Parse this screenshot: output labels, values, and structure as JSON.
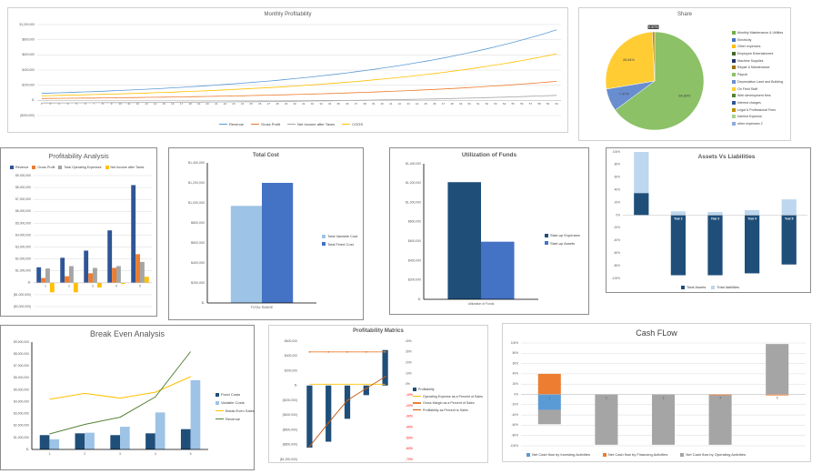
{
  "chart_data": [
    {
      "id": "monthly",
      "type": "line",
      "title": "Monthly Profitability",
      "grid": true,
      "legend": "bottom",
      "ylim": [
        -200000,
        1000000
      ],
      "yticks": [
        "($200,000)",
        "$-",
        "$200,000",
        "$400,000",
        "$600,000",
        "$800,000",
        "$1,000,000"
      ],
      "categories": [
        1,
        2,
        3,
        4,
        5,
        6,
        7,
        8,
        9,
        10,
        11,
        12,
        13,
        14,
        15,
        16,
        17,
        18,
        19,
        20,
        21,
        22,
        23,
        24,
        25,
        26,
        27,
        28,
        29,
        30,
        31,
        32,
        33,
        34,
        35,
        36,
        37,
        38,
        39,
        40,
        41,
        42,
        43,
        44,
        45,
        46,
        47,
        48,
        49,
        50,
        51,
        52,
        53,
        54,
        55,
        56,
        57,
        58,
        59,
        60
      ],
      "series": [
        {
          "name": "Revenue",
          "type": "line",
          "color": "#5b9bd5",
          "values": [
            92000,
            96000,
            100000,
            104000,
            108000,
            112000,
            116000,
            121000,
            126000,
            131000,
            136000,
            142000,
            147000,
            153000,
            159000,
            166000,
            172000,
            179000,
            186000,
            194000,
            202000,
            210000,
            218000,
            227000,
            236000,
            245000,
            255000,
            265000,
            276000,
            287000,
            298000,
            310000,
            323000,
            336000,
            349000,
            363000,
            378000,
            393000,
            408000,
            425000,
            442000,
            459000,
            478000,
            497000,
            517000,
            537000,
            559000,
            581000,
            605000,
            629000,
            654000,
            680000,
            707000,
            736000,
            765000,
            796000,
            827000,
            860000,
            895000,
            931000
          ]
        },
        {
          "name": "Gross Profit",
          "type": "line",
          "color": "#ed7d31",
          "values": [
            25000,
            26000,
            27000,
            28000,
            29000,
            30000,
            31000,
            33000,
            34000,
            35000,
            37000,
            38000,
            40000,
            41000,
            43000,
            45000,
            47000,
            48000,
            50000,
            52000,
            54000,
            57000,
            59000,
            61000,
            64000,
            66000,
            69000,
            72000,
            74000,
            77000,
            81000,
            84000,
            87000,
            91000,
            94000,
            98000,
            102000,
            106000,
            110000,
            115000,
            119000,
            124000,
            129000,
            134000,
            140000,
            145000,
            151000,
            157000,
            163000,
            170000,
            177000,
            184000,
            191000,
            199000,
            207000,
            215000,
            223000,
            232000,
            242000,
            251000
          ]
        },
        {
          "name": "Net Income after Taxes",
          "type": "line",
          "color": "#a5a5a5",
          "values": [
            -34000,
            -34000,
            -33000,
            -33000,
            -32000,
            -32000,
            -31000,
            -30000,
            -30000,
            -29000,
            -29000,
            -28000,
            -27000,
            -27000,
            -26000,
            -25000,
            -24000,
            -23000,
            -23000,
            -22000,
            -21000,
            -20000,
            -19000,
            -18000,
            -17000,
            -16000,
            -14000,
            -13000,
            -12000,
            -11000,
            -9000,
            -8000,
            -6000,
            -5000,
            -3000,
            -1000,
            0,
            2000,
            4000,
            6000,
            8000,
            10000,
            12000,
            15000,
            17000,
            19000,
            22000,
            25000,
            28000,
            30000,
            33000,
            37000,
            40000,
            43000,
            47000,
            50000,
            54000,
            58000,
            62000,
            67000
          ]
        },
        {
          "name": "COGS",
          "type": "line",
          "color": "#ffc000",
          "values": [
            61000,
            63000,
            66000,
            68000,
            71000,
            74000,
            77000,
            80000,
            83000,
            86000,
            90000,
            93000,
            97000,
            101000,
            105000,
            109000,
            114000,
            118000,
            123000,
            128000,
            133000,
            138000,
            144000,
            150000,
            156000,
            162000,
            168000,
            175000,
            182000,
            189000,
            197000,
            205000,
            213000,
            222000,
            230000,
            240000,
            249000,
            259000,
            270000,
            280000,
            292000,
            303000,
            315000,
            328000,
            341000,
            355000,
            369000,
            384000,
            399000,
            415000,
            432000,
            449000,
            467000,
            485000,
            505000,
            525000,
            546000,
            568000,
            591000,
            614000
          ]
        }
      ]
    },
    {
      "id": "share",
      "type": "pie",
      "title": "Share",
      "legend": "right",
      "slices": [
        {
          "name": "Monthly Maintenance & Utilities",
          "value": 0,
          "color": "#70ad47"
        },
        {
          "name": "Electricity",
          "value": 0,
          "color": "#4472c4"
        },
        {
          "name": "Other expenses",
          "value": 0,
          "color": "#ffc000"
        },
        {
          "name": "Employee Entertainment",
          "value": 0,
          "color": "#43682b"
        },
        {
          "name": "Machine Supplies",
          "value": 0,
          "color": "#1f3864"
        },
        {
          "name": "Repair & Maintenance",
          "value": 0,
          "color": "#997300"
        },
        {
          "name": "Payroll",
          "value": 64.89,
          "color": "#8cc168",
          "label": "64.89%"
        },
        {
          "name": "Depreciation Land and Building",
          "value": 7.47,
          "color": "#698ed0",
          "label": "7.47%"
        },
        {
          "name": "On Field Staff",
          "value": 26.84,
          "color": "#ffcd33",
          "label": "26.84%"
        },
        {
          "name": "Web development fees",
          "value": 0,
          "color": "#548235"
        },
        {
          "name": "Interest charges",
          "value": 0,
          "color": "#2f5597"
        },
        {
          "name": "Legal & Professional Fees",
          "value": 0.8,
          "color": "#bf9000",
          "label": "0.80%"
        },
        {
          "name": "Interest Expense",
          "value": 0,
          "color": "#a9d18e"
        },
        {
          "name": "other expenses 2",
          "value": 0,
          "color": "#8faadc"
        }
      ]
    },
    {
      "id": "profit_analysis",
      "type": "bar",
      "title": "Profitability Analysis",
      "grid": true,
      "legend": "top",
      "ylim": [
        -2000000,
        9000000
      ],
      "yticks": [
        "($2,000,000)",
        "($1,000,000)",
        "$-",
        "$1,000,000",
        "$2,000,000",
        "$3,000,000",
        "$4,000,000",
        "$5,000,000",
        "$6,000,000",
        "$7,000,000",
        "$8,000,000",
        "$9,000,000"
      ],
      "categories": [
        "1",
        "2",
        "3",
        "4",
        "5"
      ],
      "series": [
        {
          "name": "Revenue",
          "type": "bar",
          "color": "#2f5597",
          "values": [
            1300000,
            2100000,
            2700000,
            4400000,
            8200000
          ]
        },
        {
          "name": "Gross Profit",
          "type": "bar",
          "color": "#ed7d31",
          "values": [
            400000,
            550000,
            800000,
            1250000,
            2400000
          ]
        },
        {
          "name": "Total Operating Expenses",
          "type": "bar",
          "color": "#a5a5a5",
          "values": [
            1200000,
            1400000,
            1250000,
            1400000,
            1750000
          ]
        },
        {
          "name": "Net Income after Taxes",
          "type": "bar",
          "color": "#ffc000",
          "values": [
            -800000,
            -800000,
            -400000,
            -100000,
            500000
          ]
        }
      ]
    },
    {
      "id": "total_cost",
      "type": "bar",
      "title": "Total Cost",
      "grid": false,
      "legend": "right",
      "ylim": [
        0,
        1400000
      ],
      "yticks": [
        "$-",
        "$200,000",
        "$400,000",
        "$600,000",
        "$800,000",
        "$1,000,000",
        "$1,200,000",
        "$1,400,000"
      ],
      "categories": [
        "TOTAL RANGE"
      ],
      "series": [
        {
          "name": "Total Variable Cost",
          "type": "bar",
          "color": "#9dc3e6",
          "values": [
            970000
          ]
        },
        {
          "name": "Total Fixed Cost",
          "type": "bar",
          "color": "#4472c4",
          "values": [
            1200000
          ]
        }
      ]
    },
    {
      "id": "utilization",
      "type": "bar",
      "title": "Utilization of Funds",
      "grid": false,
      "legend": "right",
      "ylim": [
        0,
        1400000
      ],
      "yticks": [
        "$-",
        "$200,000",
        "$400,000",
        "$600,000",
        "$800,000",
        "$1,000,000",
        "$1,200,000",
        "$1,400,000"
      ],
      "categories": [
        "Utilization of Funds"
      ],
      "series": [
        {
          "name": "Start-up Expenses",
          "type": "bar",
          "color": "#1f4e79",
          "values": [
            1210000
          ]
        },
        {
          "name": "Start-up Assets",
          "type": "bar",
          "color": "#4472c4",
          "values": [
            595000
          ]
        }
      ]
    },
    {
      "id": "assets_liabilities",
      "type": "stacked-bar",
      "title": "Assets Vs Liabilities",
      "grid": false,
      "legend": "bottom",
      "ylim": [
        -100,
        100
      ],
      "yticks": [
        "-100%",
        "-80%",
        "-60%",
        "-40%",
        "-20%",
        "0%",
        "20%",
        "40%",
        "60%",
        "80%",
        "100%"
      ],
      "categories": [
        "",
        "Year 2",
        "Year 3",
        "Year 4",
        "Year 5"
      ],
      "series": [
        {
          "name": "Total Assets",
          "type": "bar",
          "color": "#1f4e79",
          "values": [
            35,
            -95,
            -95,
            -92,
            -78
          ]
        },
        {
          "name": "Total liabilities",
          "type": "bar",
          "color": "#bdd7ee",
          "values": [
            65,
            6,
            5,
            8,
            25
          ]
        }
      ]
    },
    {
      "id": "break_even",
      "type": "combo",
      "title": "Break Even Analysis",
      "grid": false,
      "legend": "right",
      "ylim": [
        0,
        9000000
      ],
      "yticks": [
        "$-",
        "$1,000,000",
        "$2,000,000",
        "$3,000,000",
        "$4,000,000",
        "$5,000,000",
        "$6,000,000",
        "$7,000,000",
        "$8,000,000",
        "$9,000,000"
      ],
      "categories": [
        "1",
        "2",
        "3",
        "4",
        "5"
      ],
      "series": [
        {
          "name": "Fixed Costs",
          "type": "bar",
          "color": "#1f4e79",
          "values": [
            1200000,
            1350000,
            1200000,
            1350000,
            1700000
          ]
        },
        {
          "name": "Variable Costs",
          "type": "bar",
          "color": "#9dc3e6",
          "values": [
            850000,
            1400000,
            1900000,
            3100000,
            5800000
          ]
        },
        {
          "name": "Break Even Sales",
          "type": "line",
          "color": "#ffc000",
          "values": [
            4200000,
            4700000,
            4300000,
            4800000,
            6100000
          ]
        },
        {
          "name": "Revenue",
          "type": "line",
          "color": "#548235",
          "values": [
            1300000,
            2100000,
            2700000,
            4400000,
            8200000
          ]
        }
      ]
    },
    {
      "id": "profit_metrics",
      "type": "combo",
      "title": "Profitability Matrics",
      "grid": false,
      "legend": "right",
      "ylim": [
        -1000000,
        600000
      ],
      "yticks": [
        "($1,000,000)",
        "($800,000)",
        "($600,000)",
        "($400,000)",
        "($200,000)",
        "$-",
        "$200,000",
        "$400,000",
        "$600,000"
      ],
      "y2lim": [
        -70,
        40
      ],
      "y2ticks": [
        "-70%",
        "-60%",
        "-50%",
        "-40%",
        "-30%",
        "-20%",
        "-10%",
        "0%",
        "10%",
        "20%",
        "30%",
        "40%"
      ],
      "negative_tick_color": "#ff0000",
      "categories": [
        "1",
        "2",
        "3",
        "4",
        "5"
      ],
      "series": [
        {
          "name": "Profitability",
          "type": "bar",
          "color": "#1f4e79",
          "values": [
            -840000,
            -760000,
            -450000,
            -130000,
            480000
          ]
        },
        {
          "name": "Operating Expense as a Percent of Sales",
          "type": "line",
          "axis": "secondary",
          "color": "#ffc000",
          "values": [
            0,
            0,
            0,
            0,
            0
          ]
        },
        {
          "name": "Gross Margin as a Percent of Sales",
          "type": "line",
          "axis": "secondary",
          "color": "#ed7d31",
          "markers": true,
          "values": [
            30,
            30,
            30,
            30,
            30
          ]
        },
        {
          "name": "Profitability as Percent to Sales",
          "type": "line",
          "axis": "secondary",
          "color": "#c55a11",
          "markers": true,
          "values": [
            -58,
            -36,
            -15,
            -4,
            7
          ]
        }
      ]
    },
    {
      "id": "cash_flow",
      "type": "stacked-bar",
      "title": "Cash FLow",
      "grid": true,
      "legend": "bottom",
      "ylim": [
        -100,
        100
      ],
      "yticks": [
        "-100%",
        "-80%",
        "-60%",
        "-40%",
        "-20%",
        "0%",
        "20%",
        "40%",
        "60%",
        "80%",
        "100%"
      ],
      "categories": [
        "1",
        "2",
        "3",
        "4",
        "5"
      ],
      "series": [
        {
          "name": "Net Cash flow by Investing Activities",
          "type": "bar",
          "color": "#5b9bd5",
          "values": [
            -30,
            0,
            0,
            0,
            0
          ]
        },
        {
          "name": "Net Cash flow by Financing Activities",
          "type": "bar",
          "color": "#ed7d31",
          "values": [
            40,
            0,
            0,
            -2,
            -2
          ]
        },
        {
          "name": "Net Cash flow by Operating Activities",
          "type": "bar",
          "color": "#a5a5a5",
          "values": [
            -28,
            -98,
            -98,
            -96,
            98
          ]
        }
      ]
    }
  ]
}
